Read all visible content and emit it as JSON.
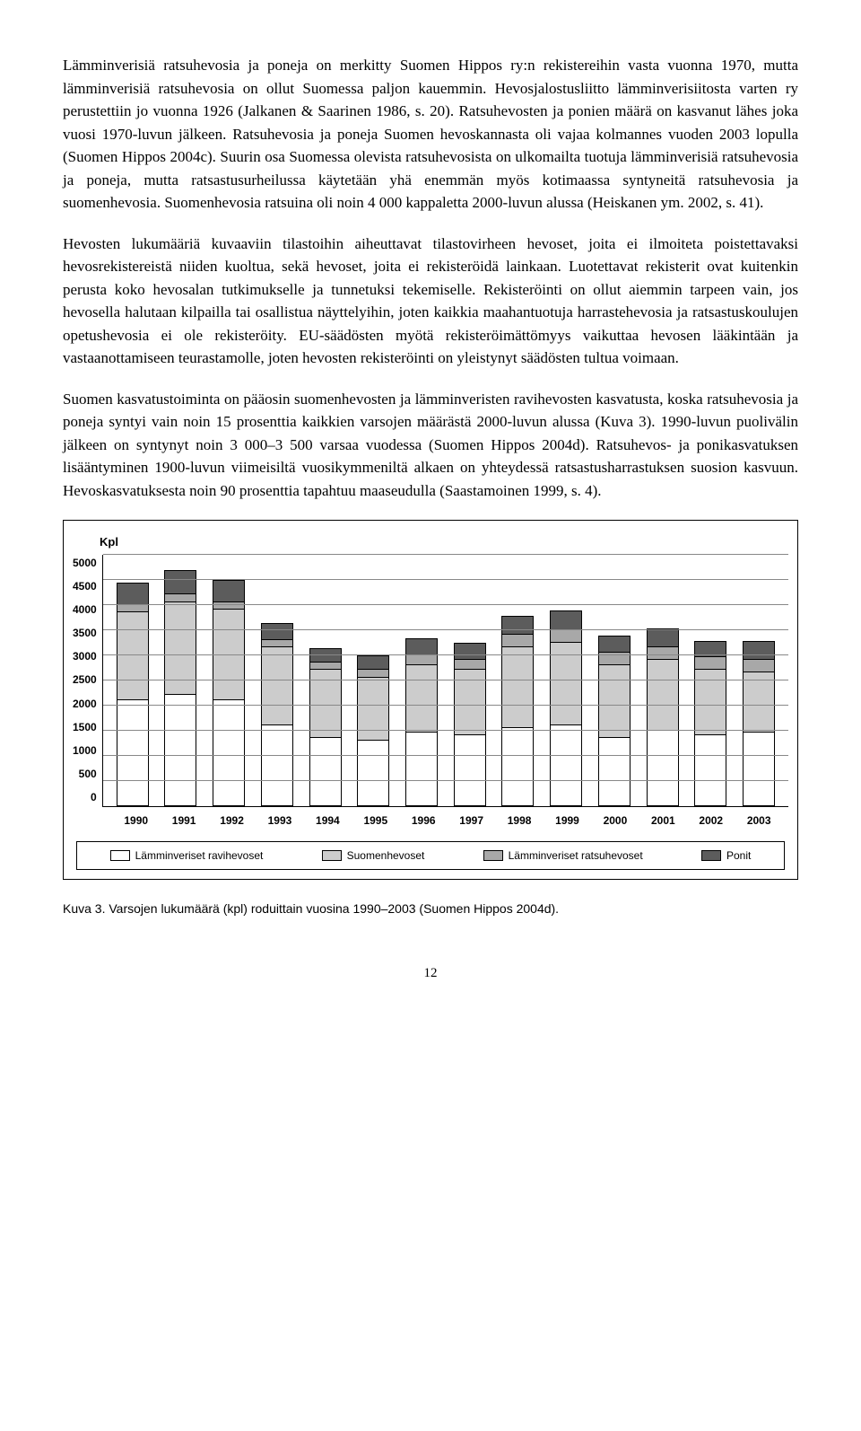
{
  "para1": "Lämminverisiä ratsuhevosia ja poneja on merkitty Suomen Hippos ry:n rekistereihin vasta vuonna 1970, mutta lämminverisiä ratsuhevosia on ollut Suomessa paljon kauemmin. Hevosjalostusliitto lämminverisiitosta varten ry perustettiin jo vuonna 1926 (Jalkanen & Saarinen 1986, s. 20). Ratsuhevosten ja ponien määrä on kasvanut lähes joka vuosi 1970-luvun jälkeen. Ratsuhevosia ja poneja Suomen hevoskannasta oli vajaa kolmannes vuoden 2003 lopulla (Suomen Hippos 2004c). Suurin osa Suomessa olevista ratsuhevosista on ulkomailta tuotuja lämminverisiä ratsuhevosia ja poneja, mutta ratsastusurheilussa käytetään yhä enemmän myös kotimaassa syntyneitä ratsuhevosia ja suomenhevosia. Suomenhevosia ratsuina oli noin 4 000 kappaletta 2000-luvun alussa (Heiskanen ym. 2002, s. 41).",
  "para2": "Hevosten lukumääriä kuvaaviin tilastoihin aiheuttavat tilastovirheen hevoset, joita ei ilmoiteta poistettavaksi hevosrekistereistä niiden kuoltua, sekä hevoset, joita ei rekisteröidä lainkaan. Luotettavat rekisterit ovat kuitenkin perusta koko hevosalan tutkimukselle ja tunnetuksi tekemiselle. Rekisteröinti on ollut aiemmin tarpeen vain, jos hevosella halutaan kilpailla tai osallistua näyttelyihin, joten kaikkia maahantuotuja harrastehevosia ja ratsastuskoulujen opetushevosia ei ole rekisteröity. EU-säädösten myötä rekisteröimättömyys vaikuttaa hevosen lääkintään ja vastaanottamiseen teurastamolle, joten hevosten rekisteröinti on yleistynyt säädösten tultua voimaan.",
  "para3": "Suomen kasvatustoiminta on pääosin suomenhevosten ja lämminveristen ravihevosten kasvatusta, koska ratsuhevosia ja poneja syntyi vain noin 15 prosenttia kaikkien varsojen määrästä 2000-luvun alussa (Kuva 3). 1990-luvun puolivälin jälkeen on syntynyt noin 3 000–3 500 varsaa vuodessa (Suomen Hippos 2004d). Ratsuhevos- ja ponikasvatuksen lisääntyminen 1900-luvun viimeisiltä vuosikymmeniltä alkaen on yhteydessä ratsastusharrastuksen suosion kasvuun. Hevoskasvatuksesta noin 90 prosenttia tapahtuu maaseudulla (Saastamoinen 1999, s. 4).",
  "chart": {
    "ylabel": "Kpl",
    "ymax": 5000,
    "ystep": 500,
    "yticks": [
      "5000",
      "4500",
      "4000",
      "3500",
      "3000",
      "2500",
      "2000",
      "1500",
      "1000",
      "500",
      "0"
    ],
    "grid_color": "#888888",
    "colors": {
      "ravi": "#ffffff",
      "suomen": "#cccccc",
      "ratsu": "#a8a8a8",
      "ponit": "#5c5c5c"
    },
    "years": [
      "1990",
      "1991",
      "1992",
      "1993",
      "1994",
      "1995",
      "1996",
      "1997",
      "1998",
      "1999",
      "2000",
      "2001",
      "2002",
      "2003"
    ],
    "series": [
      {
        "ravi": 2100,
        "suomen": 1750,
        "ratsu": 150,
        "ponit": 400
      },
      {
        "ravi": 2200,
        "suomen": 1850,
        "ratsu": 150,
        "ponit": 450
      },
      {
        "ravi": 2100,
        "suomen": 1800,
        "ratsu": 150,
        "ponit": 400
      },
      {
        "ravi": 1600,
        "suomen": 1550,
        "ratsu": 150,
        "ponit": 300
      },
      {
        "ravi": 1350,
        "suomen": 1350,
        "ratsu": 150,
        "ponit": 250
      },
      {
        "ravi": 1300,
        "suomen": 1250,
        "ratsu": 150,
        "ponit": 250
      },
      {
        "ravi": 1450,
        "suomen": 1350,
        "ratsu": 200,
        "ponit": 300
      },
      {
        "ravi": 1400,
        "suomen": 1300,
        "ratsu": 200,
        "ponit": 300
      },
      {
        "ravi": 1550,
        "suomen": 1600,
        "ratsu": 250,
        "ponit": 350
      },
      {
        "ravi": 1600,
        "suomen": 1650,
        "ratsu": 250,
        "ponit": 350
      },
      {
        "ravi": 1350,
        "suomen": 1450,
        "ratsu": 250,
        "ponit": 300
      },
      {
        "ravi": 1500,
        "suomen": 1400,
        "ratsu": 250,
        "ponit": 350
      },
      {
        "ravi": 1400,
        "suomen": 1300,
        "ratsu": 250,
        "ponit": 300
      },
      {
        "ravi": 1450,
        "suomen": 1200,
        "ratsu": 250,
        "ponit": 350
      }
    ],
    "legend": {
      "ravi": "Lämminveriset ravihevoset",
      "suomen": "Suomenhevoset",
      "ratsu": "Lämminveriset ratsuhevoset",
      "ponit": "Ponit"
    }
  },
  "caption": "Kuva 3. Varsojen lukumäärä (kpl) roduittain vuosina 1990–2003 (Suomen Hippos 2004d).",
  "pagenum": "12"
}
